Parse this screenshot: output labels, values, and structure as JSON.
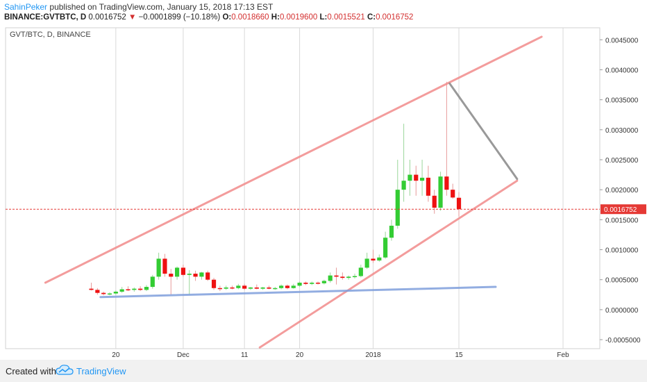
{
  "header": {
    "user": "SahinPeker",
    "published": "published on TradingView.com, January 15, 2018 17:13 EST",
    "symbol": "BINANCE:GVTBTC, D",
    "last": "0.0016752",
    "down_arrow": "▼",
    "change": "−0.0001899 (−10.18%)",
    "o_label": "O:",
    "o_value": "0.0018660",
    "h_label": "H:",
    "h_value": "0.0019600",
    "l_label": "L:",
    "l_value": "0.0015521",
    "c_label": "C:",
    "c_value": "0.0016752"
  },
  "chart_title": "GVT/BTC, D, BINANCE",
  "footer": {
    "created": "Created with",
    "brand": "TradingView",
    "logo_icon": "tradingview-cloud-icon"
  },
  "colors": {
    "up": "#33cc33",
    "down": "#ee1111",
    "channel": "#f28b8b",
    "support": "#7f9fdc",
    "projection": "#888888",
    "price_line": "#e53935"
  },
  "chart_data": {
    "type": "candlestick",
    "title": "GVT/BTC, D, BINANCE",
    "ylim": [
      -0.00065,
      0.0047
    ],
    "yticks": [
      "0.0045000",
      "0.0040000",
      "0.0035000",
      "0.0030000",
      "0.0025000",
      "0.0020000",
      "0.0015000",
      "0.0010000",
      "0.0005000",
      "0.0000000",
      "-0.0005000"
    ],
    "ytick_values": [
      0.0045,
      0.004,
      0.0035,
      0.003,
      0.0025,
      0.002,
      0.0015,
      0.001,
      0.0005,
      0,
      -0.0005
    ],
    "xticks": [
      {
        "label": "20",
        "day": 20
      },
      {
        "label": "Dec",
        "day": 31
      },
      {
        "label": "11",
        "day": 41
      },
      {
        "label": "20",
        "day": 50
      },
      {
        "label": "2018",
        "day": 62
      },
      {
        "label": "15",
        "day": 76
      },
      {
        "label": "Feb",
        "day": 93
      }
    ],
    "x_range_days": [
      2,
      99
    ],
    "last_price": 0.0016752,
    "last_price_label": "0.0016752",
    "candles": [
      {
        "d": 16,
        "o": 0.00035,
        "h": 0.00045,
        "l": 0.00032,
        "c": 0.00033
      },
      {
        "d": 17,
        "o": 0.00033,
        "h": 0.00036,
        "l": 0.00025,
        "c": 0.00028
      },
      {
        "d": 18,
        "o": 0.00028,
        "h": 0.0003,
        "l": 0.00024,
        "c": 0.00026
      },
      {
        "d": 19,
        "o": 0.00026,
        "h": 0.00029,
        "l": 0.00024,
        "c": 0.00027
      },
      {
        "d": 20,
        "o": 0.00027,
        "h": 0.00032,
        "l": 0.00025,
        "c": 0.0003
      },
      {
        "d": 21,
        "o": 0.0003,
        "h": 0.00038,
        "l": 0.00028,
        "c": 0.00034
      },
      {
        "d": 22,
        "o": 0.00034,
        "h": 0.00039,
        "l": 0.00031,
        "c": 0.00033
      },
      {
        "d": 23,
        "o": 0.00033,
        "h": 0.00037,
        "l": 0.0003,
        "c": 0.00035
      },
      {
        "d": 24,
        "o": 0.00035,
        "h": 0.00039,
        "l": 0.00031,
        "c": 0.00033
      },
      {
        "d": 25,
        "o": 0.00033,
        "h": 0.00041,
        "l": 0.00031,
        "c": 0.00038
      },
      {
        "d": 26,
        "o": 0.00038,
        "h": 0.00058,
        "l": 0.00035,
        "c": 0.00055
      },
      {
        "d": 27,
        "o": 0.00055,
        "h": 0.00095,
        "l": 0.0005,
        "c": 0.00085
      },
      {
        "d": 28,
        "o": 0.00085,
        "h": 0.00093,
        "l": 0.00055,
        "c": 0.0006
      },
      {
        "d": 29,
        "o": 0.0006,
        "h": 0.00068,
        "l": 0.00025,
        "c": 0.00055
      },
      {
        "d": 30,
        "o": 0.00055,
        "h": 0.00072,
        "l": 0.0005,
        "c": 0.0007
      },
      {
        "d": 31,
        "o": 0.0007,
        "h": 0.00075,
        "l": 0.00055,
        "c": 0.00058
      },
      {
        "d": 32,
        "o": 0.00058,
        "h": 0.00066,
        "l": 0.00025,
        "c": 0.0006
      },
      {
        "d": 33,
        "o": 0.0006,
        "h": 0.00065,
        "l": 0.00048,
        "c": 0.00055
      },
      {
        "d": 34,
        "o": 0.00055,
        "h": 0.00063,
        "l": 0.0005,
        "c": 0.00062
      },
      {
        "d": 35,
        "o": 0.00062,
        "h": 0.00065,
        "l": 0.00048,
        "c": 0.0005
      },
      {
        "d": 36,
        "o": 0.0005,
        "h": 0.00053,
        "l": 0.00033,
        "c": 0.00036
      },
      {
        "d": 37,
        "o": 0.00036,
        "h": 0.0004,
        "l": 0.00031,
        "c": 0.00035
      },
      {
        "d": 38,
        "o": 0.00035,
        "h": 0.0004,
        "l": 0.00033,
        "c": 0.00037
      },
      {
        "d": 39,
        "o": 0.00037,
        "h": 0.0004,
        "l": 0.00034,
        "c": 0.00036
      },
      {
        "d": 40,
        "o": 0.00036,
        "h": 0.00043,
        "l": 0.00034,
        "c": 0.0004
      },
      {
        "d": 41,
        "o": 0.0004,
        "h": 0.00043,
        "l": 0.00033,
        "c": 0.00035
      },
      {
        "d": 42,
        "o": 0.00035,
        "h": 0.00038,
        "l": 0.00033,
        "c": 0.00037
      },
      {
        "d": 43,
        "o": 0.00037,
        "h": 0.00042,
        "l": 0.00034,
        "c": 0.00035
      },
      {
        "d": 44,
        "o": 0.00035,
        "h": 0.00038,
        "l": 0.00033,
        "c": 0.00037
      },
      {
        "d": 45,
        "o": 0.00037,
        "h": 0.0004,
        "l": 0.00034,
        "c": 0.00035
      },
      {
        "d": 46,
        "o": 0.00035,
        "h": 0.00038,
        "l": 0.00033,
        "c": 0.00036
      },
      {
        "d": 47,
        "o": 0.00036,
        "h": 0.00042,
        "l": 0.00034,
        "c": 0.0004
      },
      {
        "d": 48,
        "o": 0.0004,
        "h": 0.00042,
        "l": 0.00034,
        "c": 0.00036
      },
      {
        "d": 49,
        "o": 0.00036,
        "h": 0.00043,
        "l": 0.00035,
        "c": 0.0004
      },
      {
        "d": 50,
        "o": 0.0004,
        "h": 0.00047,
        "l": 0.00038,
        "c": 0.00045
      },
      {
        "d": 51,
        "o": 0.00045,
        "h": 0.00047,
        "l": 0.00041,
        "c": 0.00043
      },
      {
        "d": 52,
        "o": 0.00043,
        "h": 0.00047,
        "l": 0.00041,
        "c": 0.00045
      },
      {
        "d": 53,
        "o": 0.00045,
        "h": 0.00047,
        "l": 0.00042,
        "c": 0.00044
      },
      {
        "d": 54,
        "o": 0.00044,
        "h": 0.0005,
        "l": 0.00042,
        "c": 0.00048
      },
      {
        "d": 55,
        "o": 0.00048,
        "h": 0.00062,
        "l": 0.00045,
        "c": 0.00057
      },
      {
        "d": 56,
        "o": 0.00057,
        "h": 0.0007,
        "l": 0.00042,
        "c": 0.00055
      },
      {
        "d": 57,
        "o": 0.00055,
        "h": 0.00062,
        "l": 0.0005,
        "c": 0.00053
      },
      {
        "d": 58,
        "o": 0.00053,
        "h": 0.00057,
        "l": 0.0005,
        "c": 0.00055
      },
      {
        "d": 59,
        "o": 0.00055,
        "h": 0.0006,
        "l": 0.00052,
        "c": 0.00056
      },
      {
        "d": 60,
        "o": 0.00056,
        "h": 0.00075,
        "l": 0.00054,
        "c": 0.0007
      },
      {
        "d": 61,
        "o": 0.0007,
        "h": 0.00095,
        "l": 0.00068,
        "c": 0.00085
      },
      {
        "d": 62,
        "o": 0.00085,
        "h": 0.001,
        "l": 0.00078,
        "c": 0.00082
      },
      {
        "d": 63,
        "o": 0.00082,
        "h": 0.00092,
        "l": 0.0008,
        "c": 0.00087
      },
      {
        "d": 64,
        "o": 0.00087,
        "h": 0.0013,
        "l": 0.00085,
        "c": 0.0012
      },
      {
        "d": 65,
        "o": 0.0012,
        "h": 0.0015,
        "l": 0.00115,
        "c": 0.0014
      },
      {
        "d": 66,
        "o": 0.0014,
        "h": 0.0025,
        "l": 0.00135,
        "c": 0.002
      },
      {
        "d": 67,
        "o": 0.002,
        "h": 0.0031,
        "l": 0.0018,
        "c": 0.00215
      },
      {
        "d": 68,
        "o": 0.00215,
        "h": 0.0025,
        "l": 0.0019,
        "c": 0.00225
      },
      {
        "d": 69,
        "o": 0.00225,
        "h": 0.0024,
        "l": 0.0019,
        "c": 0.00215
      },
      {
        "d": 70,
        "o": 0.00215,
        "h": 0.0025,
        "l": 0.0019,
        "c": 0.0022
      },
      {
        "d": 71,
        "o": 0.0022,
        "h": 0.0024,
        "l": 0.0018,
        "c": 0.0019
      },
      {
        "d": 72,
        "o": 0.0019,
        "h": 0.002,
        "l": 0.0016,
        "c": 0.0017
      },
      {
        "d": 73,
        "o": 0.0017,
        "h": 0.0023,
        "l": 0.00165,
        "c": 0.00222
      },
      {
        "d": 74,
        "o": 0.00222,
        "h": 0.0038,
        "l": 0.0019,
        "c": 0.002
      },
      {
        "d": 75,
        "o": 0.002,
        "h": 0.0021,
        "l": 0.00185,
        "c": 0.00187
      },
      {
        "d": 76,
        "o": 0.001866,
        "h": 0.00196,
        "l": 0.0015521,
        "c": 0.0016752
      }
    ],
    "trend_lines": [
      {
        "name": "channel-upper-line",
        "color": "#f28b8b",
        "from": [
          8.5,
          0.00045
        ],
        "to": [
          89.5,
          0.00455
        ]
      },
      {
        "name": "channel-lower-line",
        "color": "#f28b8b",
        "from": [
          43.5,
          -0.00063
        ],
        "to": [
          85.5,
          0.00215
        ]
      },
      {
        "name": "support-line",
        "color": "#7f9fdc",
        "from": [
          17.5,
          0.00021
        ],
        "to": [
          82,
          0.00038
        ]
      },
      {
        "name": "projection-line",
        "color": "#888888",
        "from": [
          74.5,
          0.00377
        ],
        "to": [
          85.5,
          0.00218
        ]
      }
    ]
  }
}
